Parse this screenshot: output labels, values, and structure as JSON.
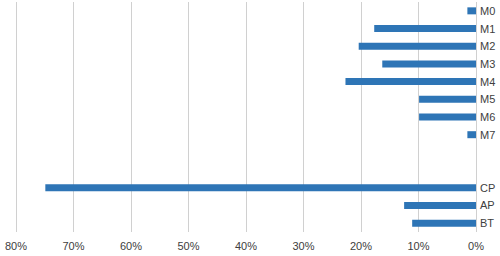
{
  "chart_data": {
    "type": "bar",
    "orientation": "horizontal",
    "categories": [
      "M0",
      "M1",
      "M2",
      "M3",
      "M4",
      "M5",
      "M6",
      "M7",
      null,
      null,
      "CP",
      "AP",
      "BT"
    ],
    "values": [
      1.5,
      17.7,
      20.4,
      16.3,
      22.7,
      9.9,
      9.9,
      1.5,
      null,
      null,
      74.9,
      12.5,
      11.1
    ],
    "color": "#2e75b6",
    "xlim": [
      0,
      80
    ],
    "xticks": [
      {
        "value": 0,
        "label": "0%"
      },
      {
        "value": 10,
        "label": "10%"
      },
      {
        "value": 20,
        "label": "20%"
      },
      {
        "value": 30,
        "label": "30%"
      },
      {
        "value": 40,
        "label": "40%"
      },
      {
        "value": 50,
        "label": "50%"
      },
      {
        "value": 60,
        "label": "60%"
      },
      {
        "value": 70,
        "label": "70%"
      },
      {
        "value": 80,
        "label": "80%"
      }
    ],
    "grid": true
  }
}
